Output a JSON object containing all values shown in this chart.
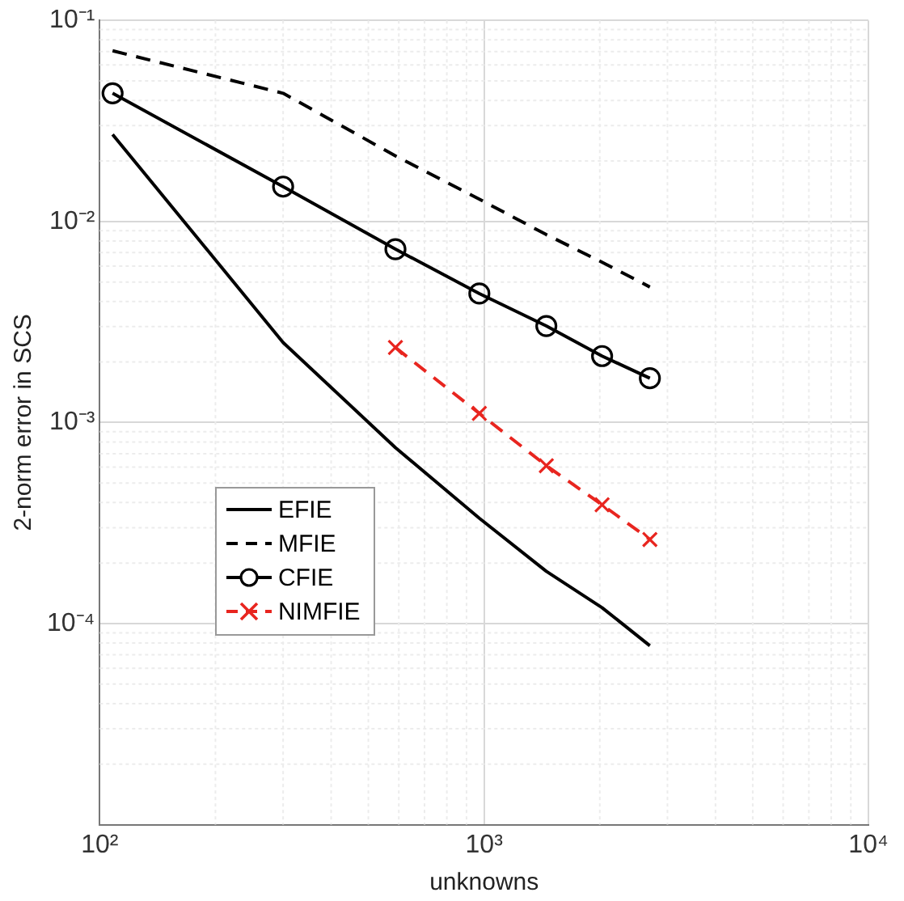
{
  "chart_data": {
    "type": "line",
    "xlabel": "unknowns",
    "ylabel": "2-norm error in SCS",
    "log": "xy",
    "grid": true,
    "legend": "bottom left",
    "xlim": [
      100,
      10000
    ],
    "ylim": [
      1e-05,
      0.1
    ],
    "xticks": [
      {
        "value": 100,
        "label": "10²"
      },
      {
        "value": 1000,
        "label": "10³"
      },
      {
        "value": 10000,
        "label": "10⁴"
      }
    ],
    "yticks": [
      {
        "value": 0.0001,
        "label": "10⁻⁴"
      },
      {
        "value": 0.001,
        "label": "10⁻³"
      },
      {
        "value": 0.01,
        "label": "10⁻²"
      },
      {
        "value": 0.1,
        "label": "10⁻¹"
      }
    ],
    "series": [
      {
        "name": "EFIE",
        "color": "#000000",
        "line_style": "solid",
        "marker": "none",
        "x": [
          108,
          300,
          588,
          972,
          1452,
          2028,
          2700
        ],
        "values": [
          0.0271,
          0.0025,
          0.00075,
          0.000334,
          0.000182,
          0.00012,
          7.76e-05
        ]
      },
      {
        "name": "MFIE",
        "color": "#000000",
        "line_style": "dashed",
        "marker": "none",
        "x": [
          108,
          300,
          588,
          972,
          1452,
          2028,
          2700
        ],
        "values": [
          0.0706,
          0.0434,
          0.0212,
          0.0129,
          0.0086,
          0.00627,
          0.00472
        ]
      },
      {
        "name": "CFIE",
        "color": "#000000",
        "line_style": "solid",
        "marker": "circle",
        "x": [
          108,
          300,
          588,
          972,
          1452,
          2028,
          2700
        ],
        "values": [
          0.0434,
          0.0149,
          0.00728,
          0.00438,
          0.00302,
          0.00214,
          0.00166
        ]
      },
      {
        "name": "NIMFIE",
        "color": "#e8251f",
        "line_style": "dashed",
        "marker": "cross",
        "x": [
          588,
          972,
          1452,
          2028,
          2700
        ],
        "values": [
          0.00236,
          0.00111,
          0.00061,
          0.00039,
          0.000262
        ]
      }
    ]
  }
}
